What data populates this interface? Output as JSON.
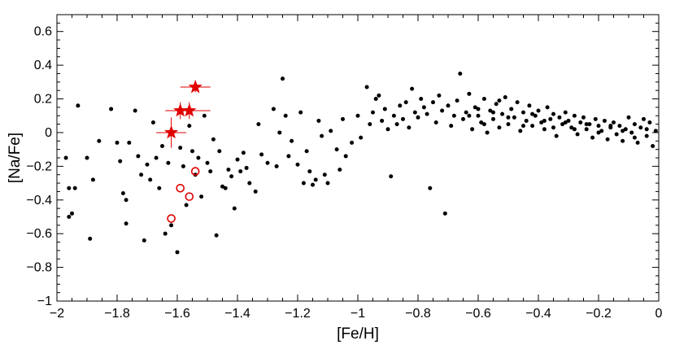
{
  "chart_data": {
    "type": "scatter",
    "title": "",
    "xlabel": "[Fe/H]",
    "ylabel": "[Na/Fe]",
    "xlim": [
      -2,
      0
    ],
    "ylim": [
      -1,
      0.7
    ],
    "x_ticks": [
      -2,
      -1.8,
      -1.6,
      -1.4,
      -1.2,
      -1,
      -0.8,
      -0.6,
      -0.4,
      -0.2,
      0
    ],
    "x_tick_labels": [
      "−2",
      "−1.8",
      "−1.6",
      "−1.4",
      "−1.2",
      "−1",
      "−0.8",
      "−0.6",
      "−0.4",
      "−0.2",
      "0"
    ],
    "y_ticks": [
      -1,
      -0.8,
      -0.6,
      -0.4,
      -0.2,
      0,
      0.2,
      0.4,
      0.6
    ],
    "y_tick_labels": [
      "−1",
      "−0.8",
      "−0.6",
      "−0.4",
      "−0.2",
      "0",
      "0.2",
      "0.4",
      "0.6"
    ],
    "grid": false,
    "colors": {
      "field": "#000000",
      "highlight": "#e00000"
    },
    "series": [
      {
        "marker": "dot",
        "points": [
          [
            -1.97,
            -0.15
          ],
          [
            -1.96,
            -0.33
          ],
          [
            -1.95,
            -0.48
          ],
          [
            -1.96,
            -0.5
          ],
          [
            -1.94,
            -0.33
          ],
          [
            -1.93,
            0.16
          ],
          [
            -1.9,
            -0.15
          ],
          [
            -1.88,
            -0.28
          ],
          [
            -1.89,
            -0.63
          ],
          [
            -1.86,
            -0.05
          ],
          [
            -1.82,
            0.14
          ],
          [
            -1.8,
            -0.06
          ],
          [
            -1.79,
            -0.17
          ],
          [
            -1.78,
            -0.36
          ],
          [
            -1.77,
            -0.4
          ],
          [
            -1.77,
            -0.54
          ],
          [
            -1.76,
            -0.06
          ],
          [
            -1.74,
            0.13
          ],
          [
            -1.73,
            -0.14
          ],
          [
            -1.72,
            -0.25
          ],
          [
            -1.71,
            -0.64
          ],
          [
            -1.7,
            -0.19
          ],
          [
            -1.69,
            -0.28
          ],
          [
            -1.68,
            0.06
          ],
          [
            -1.67,
            -0.15
          ],
          [
            -1.66,
            -0.33
          ],
          [
            -1.65,
            -0.08
          ],
          [
            -1.64,
            -0.6
          ],
          [
            -1.63,
            -0.18
          ],
          [
            -1.62,
            -0.55
          ],
          [
            -1.6,
            -0.71
          ],
          [
            -1.59,
            -0.09
          ],
          [
            -1.58,
            -0.2
          ],
          [
            -1.57,
            -0.43
          ],
          [
            -1.56,
            0.04
          ],
          [
            -1.55,
            -0.11
          ],
          [
            -1.54,
            -0.25
          ],
          [
            -1.53,
            -0.15
          ],
          [
            -1.52,
            -0.38
          ],
          [
            -1.51,
            0.1
          ],
          [
            -1.5,
            -0.18
          ],
          [
            -1.49,
            -0.23
          ],
          [
            -1.48,
            -0.04
          ],
          [
            -1.47,
            -0.61
          ],
          [
            -1.46,
            -0.11
          ],
          [
            -1.45,
            -0.32
          ],
          [
            -1.44,
            -0.33
          ],
          [
            -1.43,
            -0.22
          ],
          [
            -1.42,
            -0.26
          ],
          [
            -1.41,
            -0.45
          ],
          [
            -1.4,
            -0.16
          ],
          [
            -1.39,
            -0.23
          ],
          [
            -1.38,
            -0.12
          ],
          [
            -1.37,
            -0.21
          ],
          [
            -1.36,
            -0.3
          ],
          [
            -1.34,
            -0.35
          ],
          [
            -1.33,
            0.05
          ],
          [
            -1.32,
            -0.13
          ],
          [
            -1.3,
            -0.18
          ],
          [
            -1.28,
            0.14
          ],
          [
            -1.27,
            -0.2
          ],
          [
            -1.26,
            0.0
          ],
          [
            -1.25,
            0.32
          ],
          [
            -1.24,
            0.1
          ],
          [
            -1.23,
            -0.14
          ],
          [
            -1.22,
            -0.05
          ],
          [
            -1.2,
            -0.19
          ],
          [
            -1.19,
            0.12
          ],
          [
            -1.18,
            -0.3
          ],
          [
            -1.17,
            -0.11
          ],
          [
            -1.16,
            -0.23
          ],
          [
            -1.15,
            -0.31
          ],
          [
            -1.14,
            -0.28
          ],
          [
            -1.13,
            0.07
          ],
          [
            -1.12,
            -0.02
          ],
          [
            -1.11,
            -0.25
          ],
          [
            -1.1,
            -0.3
          ],
          [
            -1.09,
            0.01
          ],
          [
            -1.07,
            -0.1
          ],
          [
            -1.06,
            -0.22
          ],
          [
            -1.05,
            0.08
          ],
          [
            -1.04,
            -0.14
          ],
          [
            -1.02,
            -0.06
          ],
          [
            -1.0,
            0.1
          ],
          [
            -0.99,
            -0.03
          ],
          [
            -0.97,
            0.27
          ],
          [
            -0.96,
            0.05
          ],
          [
            -0.95,
            0.12
          ],
          [
            -0.94,
            0.2
          ],
          [
            -0.93,
            0.22
          ],
          [
            -0.92,
            0.07
          ],
          [
            -0.91,
            0.14
          ],
          [
            -0.9,
            0.02
          ],
          [
            -0.89,
            -0.26
          ],
          [
            -0.88,
            0.1
          ],
          [
            -0.87,
            0.05
          ],
          [
            -0.86,
            0.16
          ],
          [
            -0.85,
            0.08
          ],
          [
            -0.84,
            0.18
          ],
          [
            -0.83,
            0.03
          ],
          [
            -0.82,
            0.26
          ],
          [
            -0.81,
            0.12
          ],
          [
            -0.8,
            0.09
          ],
          [
            -0.79,
            0.2
          ],
          [
            -0.78,
            0.15
          ],
          [
            -0.77,
            0.11
          ],
          [
            -0.76,
            -0.33
          ],
          [
            -0.75,
            0.18
          ],
          [
            -0.74,
            0.06
          ],
          [
            -0.73,
            0.22
          ],
          [
            -0.72,
            0.13
          ],
          [
            -0.71,
            -0.48
          ],
          [
            -0.7,
            0.16
          ],
          [
            -0.69,
            0.04
          ],
          [
            -0.68,
            0.1
          ],
          [
            -0.67,
            0.19
          ],
          [
            -0.66,
            0.35
          ],
          [
            -0.65,
            0.08
          ],
          [
            -0.64,
            0.12
          ],
          [
            -0.63,
            0.23
          ],
          [
            -0.62,
            0.02
          ],
          [
            -0.61,
            0.15
          ],
          [
            -0.6,
            0.1
          ],
          [
            -0.59,
            0.06
          ],
          [
            -0.58,
            0.2
          ],
          [
            -0.57,
            0.0
          ],
          [
            -0.56,
            0.13
          ],
          [
            -0.55,
            0.08
          ],
          [
            -0.54,
            0.17
          ],
          [
            -0.53,
            0.03
          ],
          [
            -0.52,
            0.11
          ],
          [
            -0.51,
            0.21
          ],
          [
            -0.5,
            0.05
          ],
          [
            -0.49,
            0.14
          ],
          [
            -0.48,
            0.09
          ],
          [
            -0.47,
            0.18
          ],
          [
            -0.46,
            0.01
          ],
          [
            -0.45,
            0.12
          ],
          [
            -0.44,
            0.07
          ],
          [
            -0.43,
            0.16
          ],
          [
            -0.42,
            0.04
          ],
          [
            -0.41,
            0.1
          ],
          [
            -0.4,
            0.13
          ],
          [
            -0.39,
            0.06
          ],
          [
            -0.38,
            0.02
          ],
          [
            -0.37,
            0.15
          ],
          [
            -0.36,
            0.08
          ],
          [
            -0.35,
            0.11
          ],
          [
            -0.34,
            -0.02
          ],
          [
            -0.33,
            0.09
          ],
          [
            -0.32,
            0.05
          ],
          [
            -0.31,
            0.12
          ],
          [
            -0.3,
            0.07
          ],
          [
            -0.29,
            0.03
          ],
          [
            -0.28,
            0.1
          ],
          [
            -0.27,
            -0.01
          ],
          [
            -0.26,
            0.06
          ],
          [
            -0.25,
            0.09
          ],
          [
            -0.24,
            0.02
          ],
          [
            -0.23,
            0.05
          ],
          [
            -0.22,
            -0.03
          ],
          [
            -0.21,
            0.08
          ],
          [
            -0.2,
            0.04
          ],
          [
            -0.19,
            0.01
          ],
          [
            -0.18,
            0.07
          ],
          [
            -0.17,
            -0.04
          ],
          [
            -0.16,
            0.03
          ],
          [
            -0.15,
            0.06
          ],
          [
            -0.14,
            -0.01
          ],
          [
            -0.13,
            0.04
          ],
          [
            -0.12,
            -0.05
          ],
          [
            -0.11,
            0.02
          ],
          [
            -0.1,
            0.09
          ],
          [
            -0.09,
            0.0
          ],
          [
            -0.08,
            0.05
          ],
          [
            -0.07,
            -0.06
          ],
          [
            -0.06,
            0.03
          ],
          [
            -0.05,
            0.08
          ],
          [
            -0.04,
            -0.02
          ],
          [
            -0.03,
            0.06
          ],
          [
            -0.02,
            -0.08
          ],
          [
            -0.01,
            0.01
          ],
          [
            -0.63,
            0.1
          ],
          [
            -0.58,
            0.05
          ],
          [
            -0.55,
            0.12
          ],
          [
            -0.5,
            0.09
          ],
          [
            -0.45,
            0.04
          ],
          [
            -0.42,
            0.11
          ],
          [
            -0.38,
            0.07
          ],
          [
            -0.35,
            0.03
          ],
          [
            -0.31,
            0.06
          ],
          [
            -0.28,
            0.02
          ],
          [
            -0.24,
            0.05
          ],
          [
            -0.2,
            0.0
          ],
          [
            -0.16,
            0.04
          ],
          [
            -0.12,
            0.01
          ],
          [
            -0.08,
            -0.03
          ],
          [
            -0.04,
            0.02
          ],
          [
            -0.6,
            0.14
          ],
          [
            -0.53,
            0.19
          ]
        ]
      },
      {
        "marker": "star",
        "points": [
          [
            -1.62,
            0.0
          ],
          [
            -1.59,
            0.13
          ],
          [
            -1.56,
            0.13
          ],
          [
            -1.54,
            0.27
          ]
        ],
        "xerr": [
          0.05,
          0.05,
          0.07,
          0.05
        ],
        "yerr": [
          0.09,
          0.05,
          0.05,
          0.03
        ]
      },
      {
        "marker": "open-circle",
        "points": [
          [
            -1.54,
            -0.23
          ],
          [
            -1.59,
            -0.33
          ],
          [
            -1.56,
            -0.38
          ],
          [
            -1.62,
            -0.51
          ]
        ]
      }
    ]
  }
}
